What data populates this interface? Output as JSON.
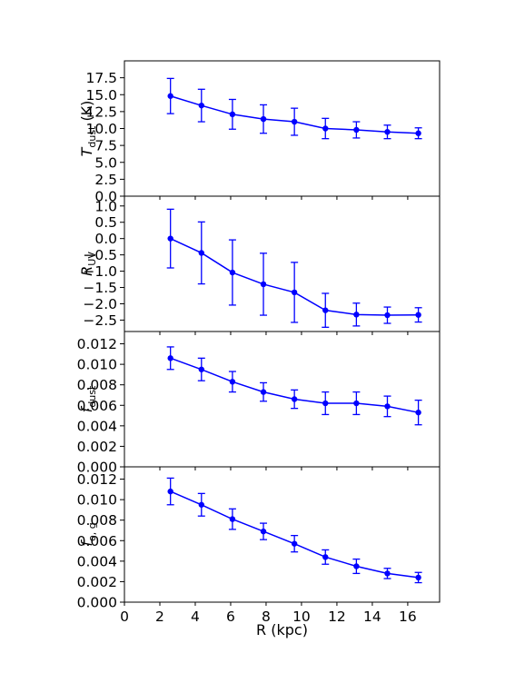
{
  "chart_data": [
    {
      "type": "line",
      "ylabel": "T_dust (K)",
      "ylabel_parts": {
        "main": "T",
        "sub": "dust",
        "suffix": " (K)"
      },
      "ylim": [
        0,
        20
      ],
      "yticks": [
        0.0,
        2.5,
        5.0,
        7.5,
        10.0,
        12.5,
        15.0,
        17.5
      ],
      "ytick_labels": [
        "0.0",
        "2.5",
        "5.0",
        "7.5",
        "10.0",
        "12.5",
        "15.0",
        "17.5"
      ],
      "series": [
        {
          "x": [
            2.6,
            4.35,
            6.1,
            7.85,
            9.6,
            11.35,
            13.1,
            14.85,
            16.6
          ],
          "y": [
            14.8,
            13.4,
            12.1,
            11.4,
            11.0,
            10.0,
            9.8,
            9.5,
            9.3
          ],
          "err": [
            2.6,
            2.4,
            2.2,
            2.1,
            2.0,
            1.5,
            1.2,
            1.0,
            0.8
          ]
        }
      ],
      "grid": false
    },
    {
      "type": "line",
      "ylabel": "R_UV",
      "ylabel_parts": {
        "main": "R",
        "sub": "UV",
        "suffix": ""
      },
      "ylim": [
        -2.85,
        1.3
      ],
      "yticks": [
        -2.5,
        -2.0,
        -1.5,
        -1.0,
        -0.5,
        0.0,
        0.5,
        1.0
      ],
      "ytick_labels": [
        "−2.5",
        "−2.0",
        "−1.5",
        "−1.0",
        "−0.5",
        "0.0",
        "0.5",
        "1.0"
      ],
      "series": [
        {
          "x": [
            2.6,
            4.35,
            6.1,
            7.85,
            9.6,
            11.35,
            13.1,
            14.85,
            16.6
          ],
          "y": [
            0.0,
            -0.44,
            -1.04,
            -1.4,
            -1.65,
            -2.2,
            -2.33,
            -2.35,
            -2.34
          ],
          "err": [
            0.9,
            0.95,
            1.0,
            0.95,
            0.92,
            0.52,
            0.35,
            0.25,
            0.22
          ]
        }
      ],
      "grid": false
    },
    {
      "type": "line",
      "ylabel": "f_dust",
      "ylabel_parts": {
        "main": "f",
        "sub": "dust",
        "suffix": ""
      },
      "ylim": [
        0,
        0.0132
      ],
      "yticks": [
        0.0,
        0.002,
        0.004,
        0.006,
        0.008,
        0.01,
        0.012
      ],
      "ytick_labels": [
        "0.000",
        "0.002",
        "0.004",
        "0.006",
        "0.008",
        "0.010",
        "0.012"
      ],
      "series": [
        {
          "x": [
            2.6,
            4.35,
            6.1,
            7.85,
            9.6,
            11.35,
            13.1,
            14.85,
            16.6
          ],
          "y": [
            0.0106,
            0.0095,
            0.0083,
            0.0073,
            0.0066,
            0.0062,
            0.0062,
            0.0059,
            0.0053
          ],
          "err": [
            0.0011,
            0.0011,
            0.001,
            0.0009,
            0.0009,
            0.0011,
            0.0011,
            0.001,
            0.0012
          ]
        }
      ],
      "grid": false
    },
    {
      "type": "line",
      "ylabel": "f_o, g",
      "ylabel_parts": {
        "main": "f",
        "sub": "o, g",
        "suffix": ""
      },
      "ylim": [
        0,
        0.0132
      ],
      "yticks": [
        0.0,
        0.002,
        0.004,
        0.006,
        0.008,
        0.01,
        0.012
      ],
      "ytick_labels": [
        "0.000",
        "0.002",
        "0.004",
        "0.006",
        "0.008",
        "0.010",
        "0.012"
      ],
      "series": [
        {
          "x": [
            2.6,
            4.35,
            6.1,
            7.85,
            9.6,
            11.35,
            13.1,
            14.85,
            16.6
          ],
          "y": [
            0.0108,
            0.0095,
            0.0081,
            0.0069,
            0.0057,
            0.0044,
            0.0035,
            0.0028,
            0.0024
          ],
          "err": [
            0.0013,
            0.0011,
            0.001,
            0.0008,
            0.0008,
            0.0007,
            0.0007,
            0.0005,
            0.0005
          ]
        }
      ],
      "grid": false
    }
  ],
  "x_axis": {
    "label": "R (kpc)",
    "xlim": [
      0,
      17.8
    ],
    "ticks": [
      0,
      2,
      4,
      6,
      8,
      10,
      12,
      14,
      16
    ],
    "tick_labels": [
      "0",
      "2",
      "4",
      "6",
      "8",
      "10",
      "12",
      "14",
      "16"
    ]
  },
  "colors": {
    "series": "#0000ff",
    "axes": "#000000",
    "background": "#ffffff"
  }
}
